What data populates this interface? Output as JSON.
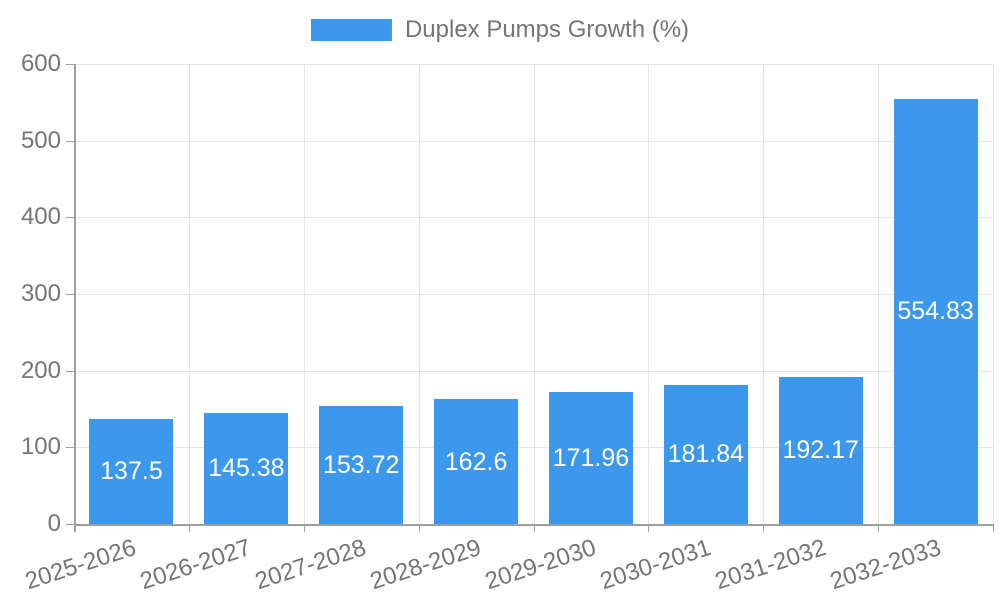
{
  "legend": {
    "series_label": "Duplex Pumps Growth (%)"
  },
  "chart_data": {
    "type": "bar",
    "title": "Duplex Pumps Growth (%)",
    "categories": [
      "2025-2026",
      "2026-2027",
      "2027-2028",
      "2028-2029",
      "2029-2030",
      "2030-2031",
      "2031-2032",
      "2032-2033"
    ],
    "values": [
      137.5,
      145.38,
      153.72,
      162.6,
      171.96,
      181.84,
      192.17,
      554.83
    ],
    "value_labels": [
      "137.5",
      "145.38",
      "153.72",
      "162.6",
      "171.96",
      "181.84",
      "192.17",
      "554.83"
    ],
    "xlabel": "",
    "ylabel": "",
    "ylim": [
      0,
      600
    ],
    "yticks": [
      0,
      100,
      200,
      300,
      400,
      500,
      600
    ],
    "grid": true,
    "legend_position": "top-center",
    "x_tick_rotation_deg": -18,
    "value_labels_inside_bars": true
  },
  "colors": {
    "bar": "#3B98EC",
    "bar_value_text": "#FFFFFF",
    "axis_line": "#9E9E9E",
    "grid_line": "#E4E4E4",
    "tick_text": "#757575",
    "legend_text": "#757575",
    "background": "#FFFFFF"
  }
}
